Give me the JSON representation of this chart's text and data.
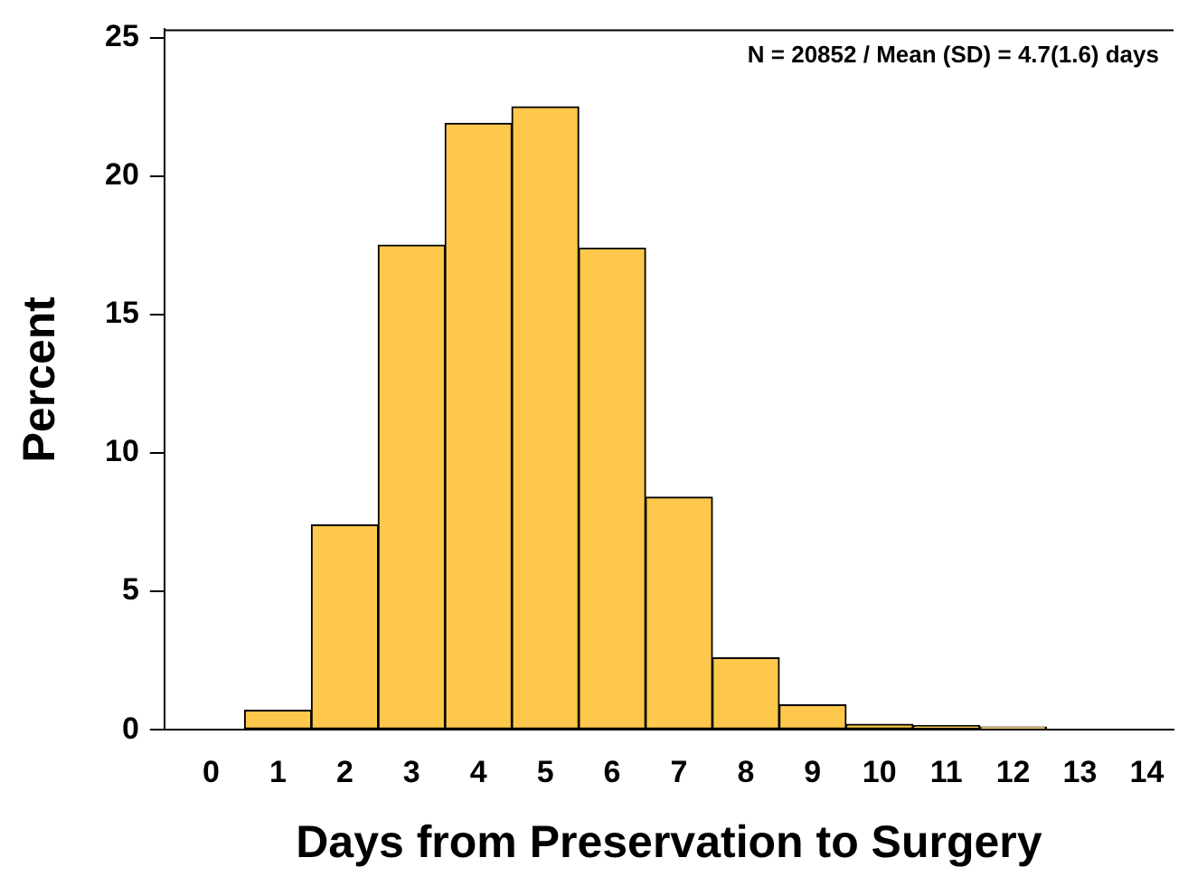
{
  "chart_data": {
    "type": "histogram",
    "xlabel": "Days from Preservation to Surgery",
    "ylabel": "Percent",
    "bins": [
      -0.5,
      0.5,
      1.5,
      2.5,
      3.5,
      4.5,
      5.5,
      6.5,
      7.5,
      8.5,
      9.5,
      10.5,
      11.5,
      12.5,
      13.5,
      14.5
    ],
    "values": [
      0,
      0.7,
      7.4,
      17.5,
      21.9,
      22.5,
      17.4,
      8.4,
      2.6,
      0.9,
      0.2,
      0.15,
      0.1,
      0,
      0
    ],
    "color": "#fdc84c",
    "xlim": [
      -0.7,
      14.4
    ],
    "xticks": [
      0,
      1,
      2,
      3,
      4,
      5,
      6,
      7,
      8,
      9,
      10,
      11,
      12,
      13,
      14
    ],
    "ylim": [
      0,
      25.3
    ],
    "yticks": [
      0,
      5,
      10,
      15,
      20,
      25
    ],
    "grid": false,
    "legend": false,
    "annotations": [
      "N = 20852 / Mean (SD) = 4.7(1.6) days"
    ]
  }
}
